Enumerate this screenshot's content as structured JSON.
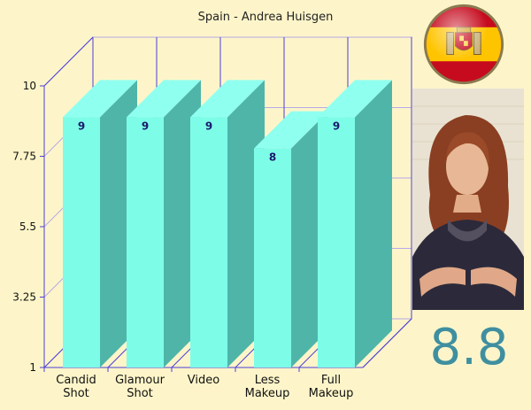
{
  "title": "Spain - Andrea Huisgen",
  "score": "8.8",
  "flag_icon": "spain-flag-icon",
  "photo_icon": "contestant-photo",
  "colors": {
    "bar_front": "#7dfde8",
    "bar_side": "#4fb5a9",
    "bar_top": "#8ffff0",
    "frame": "#4b3fd6",
    "background": "#fdf5c9",
    "score": "#3f8fa0"
  },
  "chart_data": {
    "type": "bar",
    "title": "Spain - Andrea Huisgen",
    "categories": [
      [
        "Candid",
        "Shot"
      ],
      [
        "Glamour",
        "Shot"
      ],
      [
        "Video"
      ],
      [
        "Less",
        "Makeup"
      ],
      [
        "Full",
        "Makeup"
      ]
    ],
    "values": [
      9,
      9,
      9,
      8,
      9
    ],
    "data_labels": [
      "9",
      "9",
      "9",
      "8",
      "9"
    ],
    "ylim": [
      1,
      10
    ],
    "yticks": [
      1,
      3.25,
      5.5,
      7.75,
      10
    ],
    "ytick_labels": [
      "1",
      "3.25",
      "5.5",
      "7.75",
      "10"
    ],
    "grid": true,
    "style": "3d"
  }
}
